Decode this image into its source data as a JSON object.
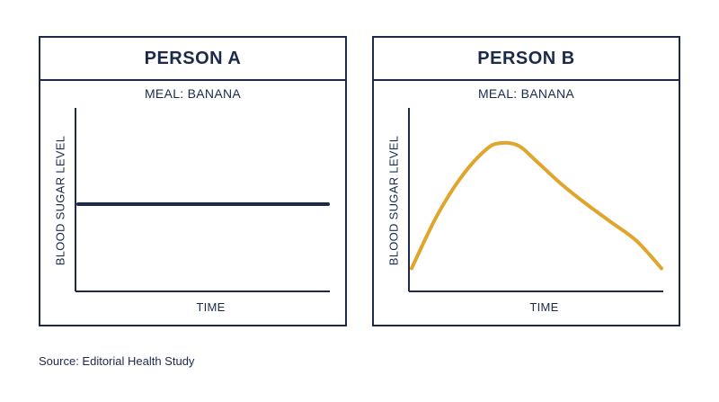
{
  "source": "Source: Editorial Health Study",
  "colors": {
    "navy": "#1b2a4a",
    "gold": "#e0a52c"
  },
  "chart_data": [
    {
      "type": "line",
      "title": "PERSON A",
      "subtitle": "MEAL: BANANA",
      "xlabel": "TIME",
      "ylabel": "BLOOD SUGAR LEVEL",
      "xlim": [
        0,
        10
      ],
      "ylim": [
        0,
        10
      ],
      "series": [
        {
          "color": "#1b2a4a",
          "x": [
            0,
            10
          ],
          "y": [
            5,
            5
          ]
        }
      ]
    },
    {
      "type": "line",
      "title": "PERSON B",
      "subtitle": "MEAL: BANANA",
      "xlabel": "TIME",
      "ylabel": "BLOOD SUGAR LEVEL",
      "xlim": [
        0,
        10
      ],
      "ylim": [
        0,
        10
      ],
      "series": [
        {
          "color": "#e0a52c",
          "x": [
            0,
            1,
            2,
            3,
            3.6,
            4.3,
            5,
            6,
            7,
            8,
            9,
            10
          ],
          "y": [
            0.8,
            4.2,
            6.8,
            8.6,
            9.0,
            8.8,
            7.8,
            6.3,
            5.0,
            3.8,
            2.6,
            0.8
          ]
        }
      ]
    }
  ]
}
